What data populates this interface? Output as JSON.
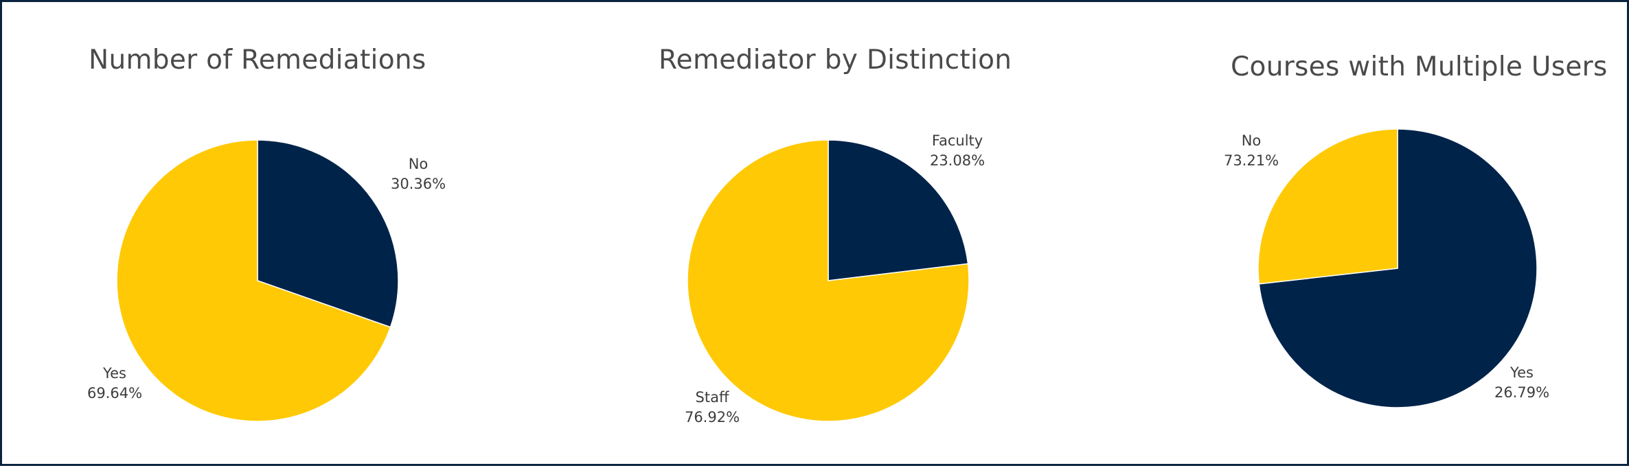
{
  "colors": {
    "navy": "#00234a",
    "gold": "#ffc905",
    "frame": "#0b2340"
  },
  "chart_data": [
    {
      "type": "pie",
      "title": "Number of Remediations",
      "slices": [
        {
          "label": "No",
          "value": 30.36,
          "value_text": "30.36%",
          "color": "#00234a"
        },
        {
          "label": "Yes",
          "value": 69.64,
          "value_text": "69.64%",
          "color": "#ffc905"
        }
      ]
    },
    {
      "type": "pie",
      "title": "Remediator by Distinction",
      "slices": [
        {
          "label": "Faculty",
          "value": 23.08,
          "value_text": "23.08%",
          "color": "#00234a"
        },
        {
          "label": "Staff",
          "value": 76.92,
          "value_text": "76.92%",
          "color": "#ffc905"
        }
      ]
    },
    {
      "type": "pie",
      "title": "Courses with Multiple Users",
      "slices": [
        {
          "label": "No",
          "value": 73.21,
          "value_text": "73.21%",
          "color": "#00234a"
        },
        {
          "label": "Yes",
          "value": 26.79,
          "value_text": "26.79%",
          "color": "#ffc905"
        }
      ]
    }
  ]
}
